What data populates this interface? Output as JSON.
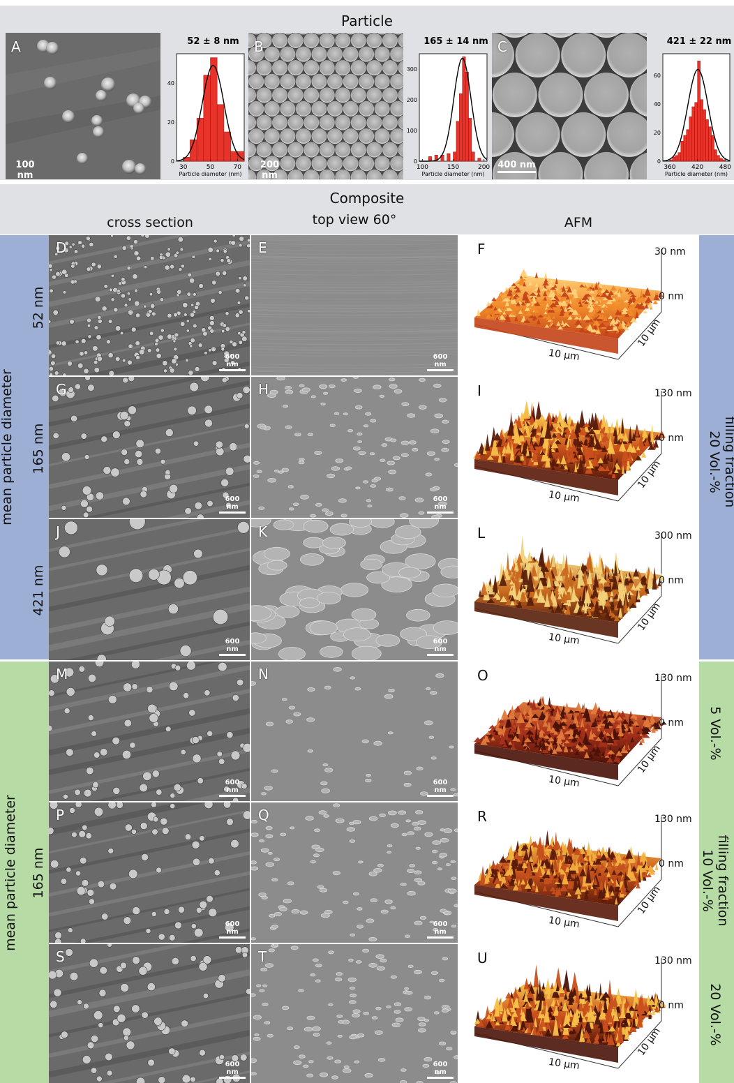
{
  "particle_section": {
    "title": "Particle",
    "panels": [
      {
        "label": "A",
        "scale": "100 nm",
        "hist_title": "52 ± 8 nm",
        "xlabel": "Particle diameter (nm)",
        "xticks": [
          "30",
          "50",
          "70"
        ],
        "yticks": [
          "0",
          "20",
          "40"
        ]
      },
      {
        "label": "B",
        "scale": "200 nm",
        "hist_title": "165 ± 14 nm",
        "xlabel": "Particle diameter (nm)",
        "xticks": [
          "100",
          "150",
          "200"
        ],
        "yticks": [
          "0",
          "100",
          "200",
          "300"
        ]
      },
      {
        "label": "C",
        "scale": "400 nm",
        "hist_title": "421 ± 22 nm",
        "xlabel": "Particle diameter (nm)",
        "xticks": [
          "360",
          "420",
          "480"
        ],
        "yticks": [
          "0",
          "20",
          "40",
          "60"
        ]
      }
    ]
  },
  "chart_data": [
    {
      "type": "bar",
      "title": "52 ± 8 nm",
      "xlabel": "Particle diameter (nm)",
      "xlim": [
        25,
        75
      ],
      "ylim": [
        0,
        55
      ],
      "bin_starts": [
        30,
        35,
        40,
        45,
        50,
        55,
        60,
        65,
        70
      ],
      "bin_width": 5,
      "values": [
        2,
        11,
        22,
        44,
        53,
        29,
        15,
        5,
        5
      ],
      "fit": {
        "mean": 52,
        "sd": 8,
        "peak": 49
      }
    },
    {
      "type": "bar",
      "title": "165 ± 14 nm",
      "xlabel": "Particle diameter (nm)",
      "xlim": [
        95,
        205
      ],
      "ylim": [
        0,
        350
      ],
      "bin_starts": [
        110,
        120,
        130,
        140,
        150,
        155,
        160,
        165,
        170,
        175,
        180,
        190
      ],
      "bin_width": 5,
      "values": [
        15,
        20,
        20,
        25,
        30,
        130,
        220,
        340,
        290,
        140,
        30,
        10
      ],
      "fit": {
        "mean": 165,
        "sd": 14,
        "peak": 335
      }
    },
    {
      "type": "bar",
      "title": "421 ± 22 nm",
      "xlabel": "Particle diameter (nm)",
      "xlim": [
        345,
        490
      ],
      "ylim": [
        0,
        75
      ],
      "bin_starts": [
        360,
        366,
        372,
        378,
        384,
        390,
        396,
        402,
        408,
        414,
        420,
        426,
        432,
        438,
        444,
        450,
        456,
        462,
        468,
        474
      ],
      "bin_width": 6,
      "values": [
        1,
        3,
        4,
        6,
        14,
        18,
        22,
        31,
        38,
        41,
        70,
        43,
        36,
        29,
        24,
        18,
        8,
        4,
        2,
        1
      ],
      "fit": {
        "mean": 421,
        "sd": 22,
        "peak": 64
      }
    }
  ],
  "composite_section": {
    "title": "Composite",
    "columns": [
      "cross section",
      "top view 60°",
      "AFM"
    ]
  },
  "rows": [
    {
      "labels": [
        "D",
        "E",
        "F"
      ],
      "top": "30 nm",
      "zero": "0 nm",
      "dim": "10 µm",
      "scale": "600 nm"
    },
    {
      "labels": [
        "G",
        "H",
        "I"
      ],
      "top": "130 nm",
      "zero": "0 nm",
      "dim": "10 µm",
      "scale": "600 nm"
    },
    {
      "labels": [
        "J",
        "K",
        "L"
      ],
      "top": "300 nm",
      "zero": "0 nm",
      "dim": "10 µm",
      "scale": "600 nm"
    },
    {
      "labels": [
        "M",
        "N",
        "O"
      ],
      "top": "130 nm",
      "zero": "0 nm",
      "dim": "10 µm",
      "scale": "600 nm"
    },
    {
      "labels": [
        "P",
        "Q",
        "R"
      ],
      "top": "130 nm",
      "zero": "0 nm",
      "dim": "10 µm",
      "scale": "600 nm"
    },
    {
      "labels": [
        "S",
        "T",
        "U"
      ],
      "top": "130 nm",
      "zero": "0 nm",
      "dim": "10 µm",
      "scale": "600 nm"
    }
  ],
  "left_blue": {
    "title": "mean particle diameter",
    "rows": [
      "52 nm",
      "165 nm",
      "421 nm"
    ]
  },
  "left_green": {
    "title": "mean particle diameter",
    "value": "165 nm"
  },
  "right_blue": {
    "line1": "filling fraction",
    "line2": "20 Vol.-%"
  },
  "right_green": {
    "row1": "5 Vol.-%",
    "line1": "filling fraction",
    "line2": "10 Vol.-%",
    "row3": "20 Vol.-%"
  },
  "colors": {
    "blue_band": "#9eafd6",
    "green_band": "#b7dba4",
    "header": "#dfe1e4",
    "bar": "#e8332a"
  }
}
